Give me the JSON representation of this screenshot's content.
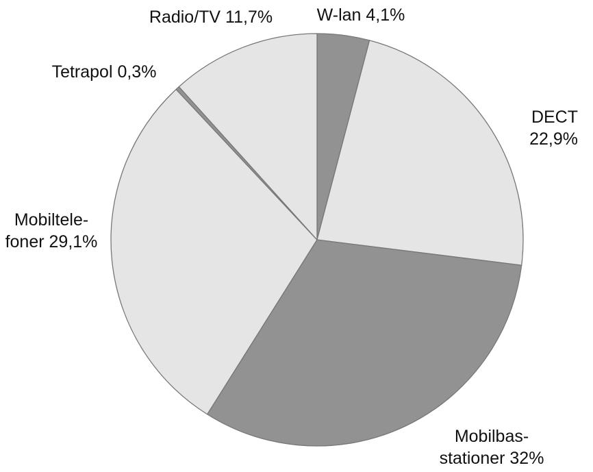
{
  "chart_data": {
    "type": "pie",
    "start_angle_deg": 0,
    "direction": "clockwise",
    "slices": [
      {
        "name": "W-lan",
        "value": 4.1,
        "label_lines": [
          "W-lan 4,1%"
        ],
        "color": "#929292"
      },
      {
        "name": "DECT",
        "value": 22.9,
        "label_lines": [
          "DECT",
          "22,9%"
        ],
        "color": "#e5e5e5"
      },
      {
        "name": "Mobilbasstationer",
        "value": 32,
        "label_lines": [
          "Mobilbas-",
          "stationer 32%"
        ],
        "color": "#929292"
      },
      {
        "name": "Mobiltelefoner",
        "value": 29.1,
        "label_lines": [
          "Mobiltele-",
          "foner 29,1%"
        ],
        "color": "#e5e5e5"
      },
      {
        "name": "Tetrapol",
        "value": 0.3,
        "label_lines": [
          "Tetrapol 0,3%"
        ],
        "color": "#929292"
      },
      {
        "name": "Radio/TV",
        "value": 11.7,
        "label_lines": [
          "Radio/TV 11,7%"
        ],
        "color": "#e5e5e5"
      }
    ],
    "edge_color": "#777777"
  }
}
